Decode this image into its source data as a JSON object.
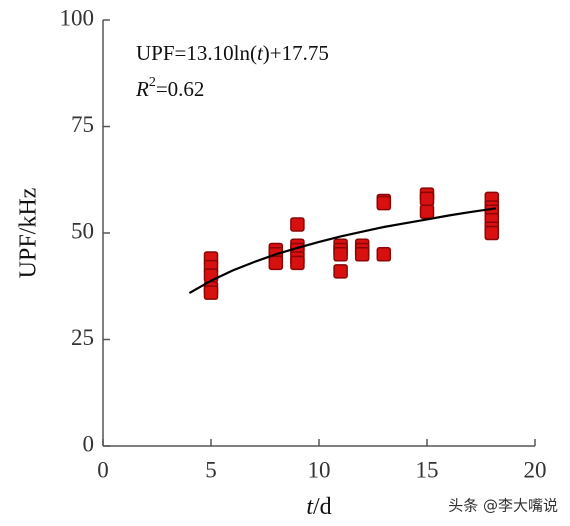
{
  "chart_data": {
    "type": "scatter",
    "xlabel": [
      "t",
      "/d"
    ],
    "ylabel": "UPF/kHz",
    "annotations": [
      [
        "UPF=13.10ln(",
        "t",
        ")+17.75"
      ],
      [
        "R",
        "2",
        "=0.62"
      ]
    ],
    "xlim": [
      0,
      20
    ],
    "xticks": [
      0,
      5,
      10,
      15,
      20
    ],
    "ylim": [
      0,
      100
    ],
    "yticks": [
      0,
      25,
      50,
      75,
      100
    ],
    "series": [
      {
        "type": "scatter",
        "color": "#d81010",
        "x": [
          5,
          5,
          5,
          5,
          5,
          8,
          8,
          8,
          9,
          9,
          9,
          9,
          9,
          11,
          11,
          11,
          11,
          12,
          12,
          12,
          13,
          13,
          13,
          15,
          15,
          15,
          18,
          18,
          18,
          18,
          18,
          18
        ],
        "values": [
          44,
          42,
          40,
          37,
          36,
          46,
          45,
          43,
          52,
          47,
          46,
          44,
          43,
          47,
          46,
          45,
          41,
          47,
          46,
          45,
          57.5,
          57,
          45,
          59,
          58,
          55,
          58,
          56,
          55,
          53,
          51,
          50
        ]
      },
      {
        "type": "line",
        "color": "#000000",
        "x": [
          4,
          5,
          6,
          7,
          8,
          9,
          10,
          11,
          12,
          13,
          14,
          15,
          16,
          17,
          18.2
        ],
        "values": [
          35.9,
          38.8,
          41.2,
          43.2,
          45.0,
          46.5,
          47.9,
          49.2,
          50.3,
          51.4,
          52.3,
          53.2,
          54.1,
          54.9,
          55.8
        ]
      }
    ],
    "watermark": "头条 @李大嘴说"
  }
}
